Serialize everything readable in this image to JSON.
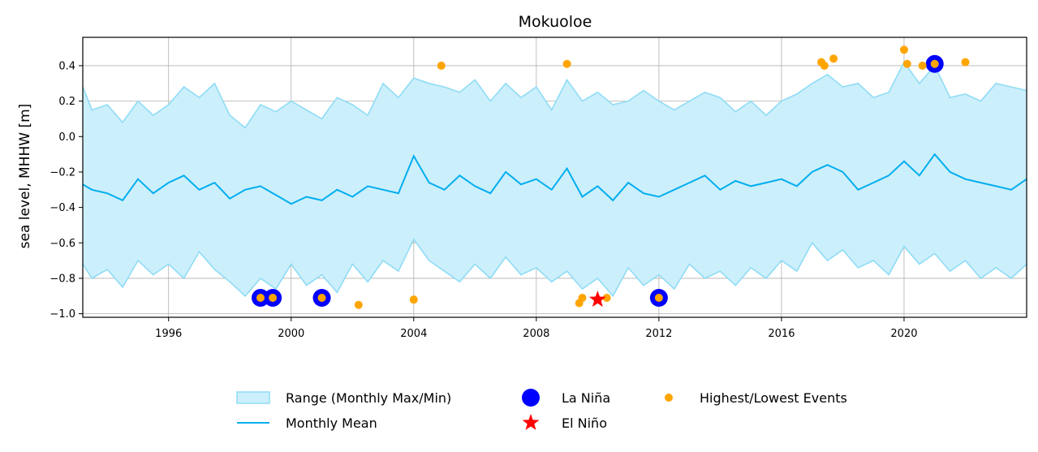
{
  "chart_data": {
    "type": "line",
    "title": "Mokuoloe",
    "xlabel": "",
    "ylabel": "sea level, MHHW [m]",
    "xlim": [
      1993.2,
      2024.0
    ],
    "ylim": [
      -1.02,
      0.56
    ],
    "x_ticks": [
      1996,
      2000,
      2004,
      2008,
      2012,
      2016,
      2020
    ],
    "x_tick_labels": [
      "1996",
      "2000",
      "2004",
      "2008",
      "2012",
      "2016",
      "2020"
    ],
    "y_ticks": [
      -1.0,
      -0.8,
      -0.6,
      -0.4,
      -0.2,
      0.0,
      0.2,
      0.4
    ],
    "y_tick_labels": [
      "−1.0",
      "−0.8",
      "−0.6",
      "−0.4",
      "−0.2",
      "0.0",
      "0.2",
      "0.4"
    ],
    "grid": true,
    "legend_position": "bottom-center",
    "colors": {
      "range_fill": "#cceffc",
      "range_edge": "#8fdcf5",
      "mean_line": "#00aeef",
      "la_nina": "#0000ff",
      "el_nino": "#ff0000",
      "events": "#ffa500"
    },
    "series": [
      {
        "name": "Range (Monthly Max/Min)",
        "kind": "band",
        "x": [
          1993.2,
          1993.5,
          1994.0,
          1994.5,
          1995.0,
          1995.5,
          1996.0,
          1996.5,
          1997.0,
          1997.5,
          1998.0,
          1998.5,
          1999.0,
          1999.5,
          2000.0,
          2000.5,
          2001.0,
          2001.5,
          2002.0,
          2002.5,
          2003.0,
          2003.5,
          2004.0,
          2004.5,
          2005.0,
          2005.5,
          2006.0,
          2006.5,
          2007.0,
          2007.5,
          2008.0,
          2008.5,
          2009.0,
          2009.5,
          2010.0,
          2010.5,
          2011.0,
          2011.5,
          2012.0,
          2012.5,
          2013.0,
          2013.5,
          2014.0,
          2014.5,
          2015.0,
          2015.5,
          2016.0,
          2016.5,
          2017.0,
          2017.5,
          2018.0,
          2018.5,
          2019.0,
          2019.5,
          2020.0,
          2020.5,
          2021.0,
          2021.5,
          2022.0,
          2022.5,
          2023.0,
          2023.5,
          2024.0
        ],
        "upper": [
          0.28,
          0.15,
          0.18,
          0.08,
          0.2,
          0.12,
          0.18,
          0.28,
          0.22,
          0.3,
          0.12,
          0.05,
          0.18,
          0.14,
          0.2,
          0.15,
          0.1,
          0.22,
          0.18,
          0.12,
          0.3,
          0.22,
          0.33,
          0.3,
          0.28,
          0.25,
          0.32,
          0.2,
          0.3,
          0.22,
          0.28,
          0.15,
          0.32,
          0.2,
          0.25,
          0.18,
          0.2,
          0.26,
          0.2,
          0.15,
          0.2,
          0.25,
          0.22,
          0.14,
          0.2,
          0.12,
          0.2,
          0.24,
          0.3,
          0.35,
          0.28,
          0.3,
          0.22,
          0.25,
          0.42,
          0.3,
          0.4,
          0.22,
          0.24,
          0.2,
          0.3,
          0.28,
          0.26
        ],
        "lower": [
          -0.72,
          -0.8,
          -0.75,
          -0.85,
          -0.7,
          -0.78,
          -0.72,
          -0.8,
          -0.65,
          -0.75,
          -0.82,
          -0.9,
          -0.8,
          -0.86,
          -0.72,
          -0.84,
          -0.78,
          -0.88,
          -0.72,
          -0.82,
          -0.7,
          -0.76,
          -0.58,
          -0.7,
          -0.76,
          -0.82,
          -0.72,
          -0.8,
          -0.68,
          -0.78,
          -0.74,
          -0.82,
          -0.76,
          -0.86,
          -0.8,
          -0.9,
          -0.74,
          -0.84,
          -0.78,
          -0.86,
          -0.72,
          -0.8,
          -0.76,
          -0.84,
          -0.74,
          -0.8,
          -0.7,
          -0.76,
          -0.6,
          -0.7,
          -0.64,
          -0.74,
          -0.7,
          -0.78,
          -0.62,
          -0.72,
          -0.66,
          -0.76,
          -0.7,
          -0.8,
          -0.74,
          -0.8,
          -0.72
        ]
      },
      {
        "name": "Monthly Mean",
        "kind": "line",
        "x": [
          1993.2,
          1993.5,
          1994.0,
          1994.5,
          1995.0,
          1995.5,
          1996.0,
          1996.5,
          1997.0,
          1997.5,
          1998.0,
          1998.5,
          1999.0,
          1999.5,
          2000.0,
          2000.5,
          2001.0,
          2001.5,
          2002.0,
          2002.5,
          2003.0,
          2003.5,
          2004.0,
          2004.5,
          2005.0,
          2005.5,
          2006.0,
          2006.5,
          2007.0,
          2007.5,
          2008.0,
          2008.5,
          2009.0,
          2009.5,
          2010.0,
          2010.5,
          2011.0,
          2011.5,
          2012.0,
          2012.5,
          2013.0,
          2013.5,
          2014.0,
          2014.5,
          2015.0,
          2015.5,
          2016.0,
          2016.5,
          2017.0,
          2017.5,
          2018.0,
          2018.5,
          2019.0,
          2019.5,
          2020.0,
          2020.5,
          2021.0,
          2021.5,
          2022.0,
          2022.5,
          2023.0,
          2023.5,
          2024.0
        ],
        "values": [
          -0.27,
          -0.3,
          -0.32,
          -0.36,
          -0.24,
          -0.32,
          -0.26,
          -0.22,
          -0.3,
          -0.26,
          -0.35,
          -0.3,
          -0.28,
          -0.33,
          -0.38,
          -0.34,
          -0.36,
          -0.3,
          -0.34,
          -0.28,
          -0.3,
          -0.32,
          -0.11,
          -0.26,
          -0.3,
          -0.22,
          -0.28,
          -0.32,
          -0.2,
          -0.27,
          -0.24,
          -0.3,
          -0.18,
          -0.34,
          -0.28,
          -0.36,
          -0.26,
          -0.32,
          -0.34,
          -0.3,
          -0.26,
          -0.22,
          -0.3,
          -0.25,
          -0.28,
          -0.26,
          -0.24,
          -0.28,
          -0.2,
          -0.16,
          -0.2,
          -0.3,
          -0.26,
          -0.22,
          -0.14,
          -0.22,
          -0.1,
          -0.2,
          -0.24,
          -0.26,
          -0.28,
          -0.3,
          -0.24
        ]
      }
    ],
    "la_nina": {
      "name": "La Niña",
      "points": [
        {
          "x": 1999.0,
          "y": -0.91
        },
        {
          "x": 1999.4,
          "y": -0.91
        },
        {
          "x": 2001.0,
          "y": -0.91
        },
        {
          "x": 2012.0,
          "y": -0.91
        },
        {
          "x": 2021.0,
          "y": 0.41
        }
      ]
    },
    "el_nino": {
      "name": "El Niño",
      "points": [
        {
          "x": 2010.0,
          "y": -0.92
        }
      ]
    },
    "events": {
      "name": "Highest/Lowest Events",
      "points": [
        {
          "x": 1999.0,
          "y": -0.91
        },
        {
          "x": 1999.4,
          "y": -0.91
        },
        {
          "x": 2001.0,
          "y": -0.91
        },
        {
          "x": 2002.2,
          "y": -0.95
        },
        {
          "x": 2004.0,
          "y": -0.92
        },
        {
          "x": 2004.9,
          "y": 0.4
        },
        {
          "x": 2009.0,
          "y": 0.41
        },
        {
          "x": 2009.4,
          "y": -0.94
        },
        {
          "x": 2009.5,
          "y": -0.91
        },
        {
          "x": 2010.0,
          "y": -0.92
        },
        {
          "x": 2010.3,
          "y": -0.91
        },
        {
          "x": 2012.0,
          "y": -0.91
        },
        {
          "x": 2017.3,
          "y": 0.42
        },
        {
          "x": 2017.4,
          "y": 0.4
        },
        {
          "x": 2017.7,
          "y": 0.44
        },
        {
          "x": 2020.0,
          "y": 0.49
        },
        {
          "x": 2020.1,
          "y": 0.41
        },
        {
          "x": 2020.6,
          "y": 0.4
        },
        {
          "x": 2021.0,
          "y": 0.41
        },
        {
          "x": 2022.0,
          "y": 0.42
        }
      ]
    },
    "legend": [
      {
        "label": "Range (Monthly Max/Min)",
        "symbol": "band"
      },
      {
        "label": "Monthly Mean",
        "symbol": "line"
      },
      {
        "label": "La Niña",
        "symbol": "big-circle"
      },
      {
        "label": "El Niño",
        "symbol": "star"
      },
      {
        "label": "Highest/Lowest Events",
        "symbol": "small-circle"
      }
    ]
  }
}
